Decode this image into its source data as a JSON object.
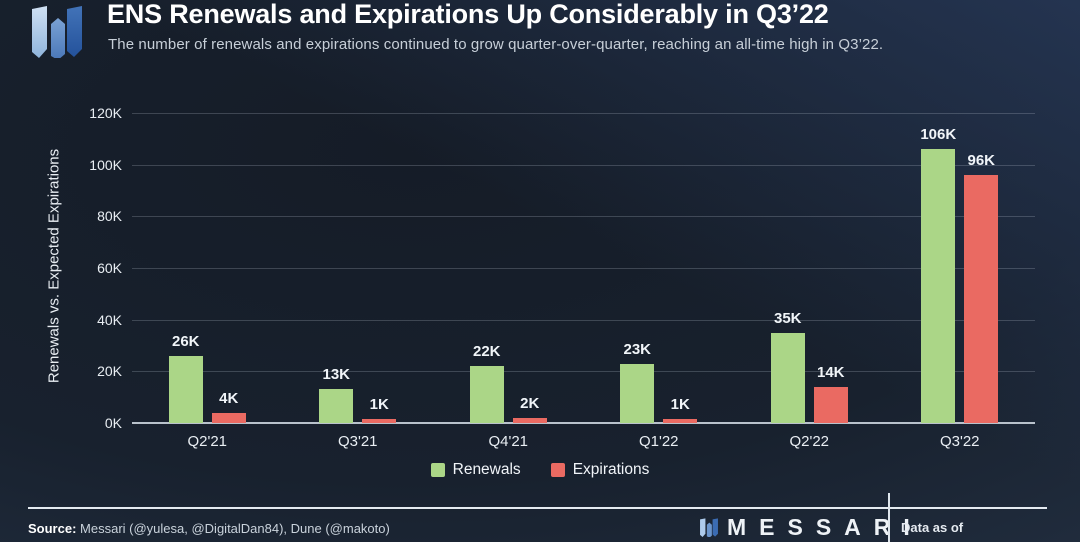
{
  "header": {
    "title": "ENS Renewals and Expirations Up Considerably in Q3’22",
    "subtitle": "The number of renewals and expirations continued to grow quarter-over-quarter, reaching an all-time high in Q3’22."
  },
  "chart_data": {
    "type": "bar",
    "title": "ENS Renewals and Expirations Up Considerably in Q3’22",
    "categories": [
      "Q2'21",
      "Q3'21",
      "Q4'21",
      "Q1'22",
      "Q2'22",
      "Q3'22"
    ],
    "series": [
      {
        "name": "Renewals",
        "color": "#abd687",
        "values": [
          26,
          13,
          22,
          23,
          35,
          106
        ],
        "labels": [
          "26K",
          "13K",
          "22K",
          "23K",
          "35K",
          "106K"
        ]
      },
      {
        "name": "Expirations",
        "color": "#ea6a62",
        "values": [
          4,
          1,
          2,
          1,
          14,
          96
        ],
        "labels": [
          "4K",
          "1K",
          "2K",
          "1K",
          "14K",
          "96K"
        ]
      }
    ],
    "unit": "thousands",
    "xlabel": "",
    "ylabel": "Renewals vs. Expected Expirations",
    "ylim": [
      0,
      120
    ],
    "yticks": [
      0,
      20,
      40,
      60,
      80,
      100,
      120
    ],
    "ytick_labels": [
      "0K",
      "20K",
      "40K",
      "60K",
      "80K",
      "100K",
      "120K"
    ],
    "grid": true,
    "legend_position": "bottom-center"
  },
  "footer": {
    "source_label": "Source:",
    "source_text": "Messari (@yulesa, @DigitalDan84), Dune (@makoto)",
    "brand_wordmark": "MESSARI",
    "data_as_of_label": "Data as of"
  },
  "colors": {
    "renewals_green": "#abd687",
    "expirations_red": "#ea6a62",
    "background_center": "#151c27",
    "background_edge": "#2c3c51",
    "gridline": "rgba(205,215,228,0.22)",
    "logo_blue_light": "#aecbec",
    "logo_blue_mid": "#5f8cc8",
    "logo_blue_dark": "#2f62ad"
  }
}
